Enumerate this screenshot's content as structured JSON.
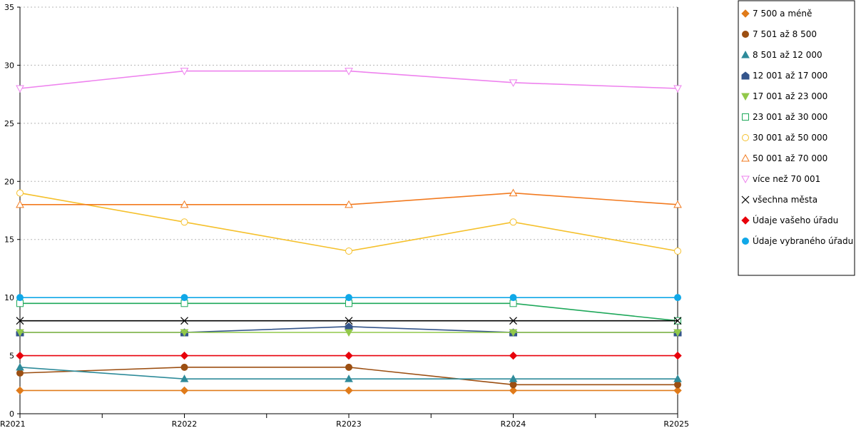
{
  "chart_data": {
    "type": "line",
    "title": "",
    "xlabel": "",
    "ylabel": "",
    "categories": [
      "R2021",
      "R2022",
      "R2023",
      "R2024",
      "R2025"
    ],
    "ylim": [
      0,
      35
    ],
    "yticks": [
      "0",
      "5",
      "10",
      "15",
      "20",
      "25",
      "30",
      "35"
    ],
    "grid": "horizontal dotted",
    "legend_position": "right",
    "series": [
      {
        "name": "7 500 a méně",
        "color": "#E07B1A",
        "marker": "diamond",
        "values": [
          2,
          2,
          2,
          2,
          2
        ]
      },
      {
        "name": "7 501 až 8 500",
        "color": "#9C4F12",
        "marker": "circle-filled",
        "values": [
          3.5,
          4,
          4,
          2.5,
          2.5
        ]
      },
      {
        "name": "8 501 až 12 000",
        "color": "#2E8B9A",
        "marker": "triangle-filled",
        "values": [
          4,
          3,
          3,
          3,
          3
        ]
      },
      {
        "name": "12 001 až 17 000",
        "color": "#34558B",
        "marker": "house-filled",
        "values": [
          7,
          7,
          7.5,
          7,
          7
        ]
      },
      {
        "name": "17 001 až 23 000",
        "color": "#92C84A",
        "marker": "triangle-down-filled",
        "values": [
          7,
          7,
          7,
          7,
          7
        ]
      },
      {
        "name": "23 001 až 30 000",
        "color": "#1EA85A",
        "marker": "square-open",
        "values": [
          9.5,
          9.5,
          9.5,
          9.5,
          8
        ]
      },
      {
        "name": "30 001 až 50 000",
        "color": "#F5C02B",
        "marker": "circle-open",
        "values": [
          19,
          16.5,
          14,
          16.5,
          14
        ]
      },
      {
        "name": "50 001 až 70 000",
        "color": "#F27A1F",
        "marker": "triangle-open",
        "values": [
          18,
          18,
          18,
          19,
          18
        ]
      },
      {
        "name": "více než 70 001",
        "color": "#EE82EE",
        "marker": "triangle-down-open",
        "values": [
          28,
          29.5,
          29.5,
          28.5,
          28
        ]
      },
      {
        "name": "všechna města",
        "color": "#000000",
        "marker": "x",
        "values": [
          8,
          8,
          8,
          8,
          8
        ]
      },
      {
        "name": "Údaje vašeho úřadu",
        "color": "#E8000B",
        "marker": "diamond",
        "values": [
          5,
          5,
          5,
          5,
          5
        ]
      },
      {
        "name": "Údaje vybraného úřadu",
        "color": "#10A8E8",
        "marker": "circle-filled",
        "values": [
          10,
          10,
          10,
          10,
          10
        ]
      }
    ]
  }
}
